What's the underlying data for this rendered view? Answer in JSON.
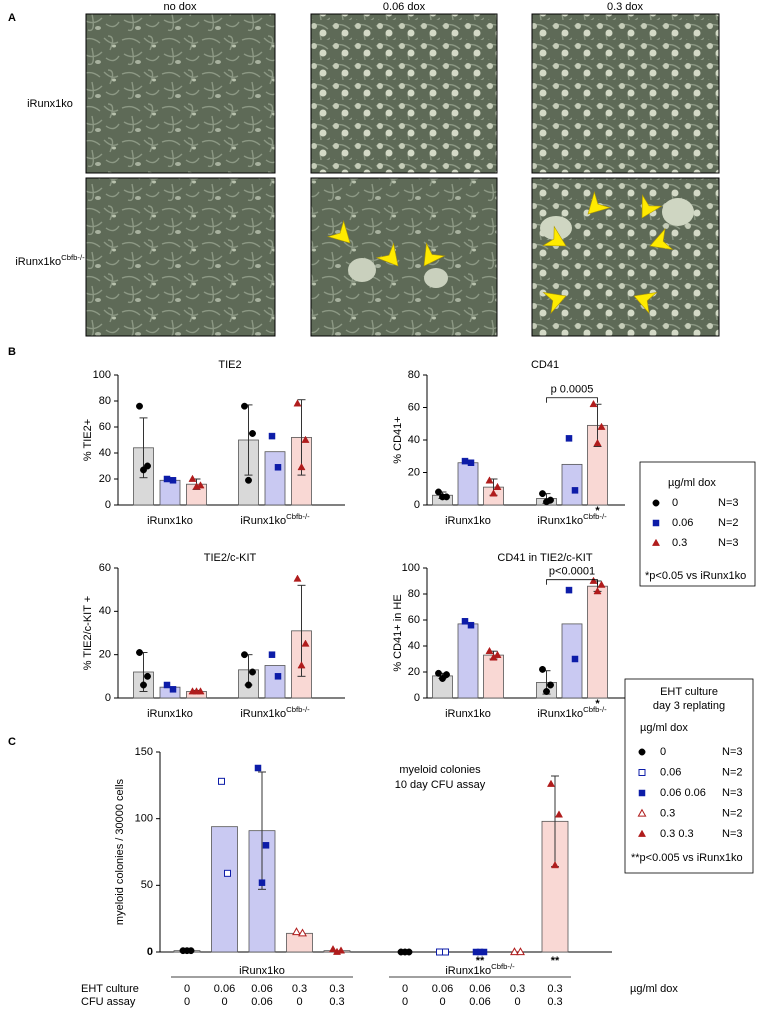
{
  "panel_labels": [
    "A",
    "B",
    "C"
  ],
  "panel_a": {
    "columns": [
      "no dox",
      "0.06 dox",
      "0.3 dox"
    ],
    "rows": [
      {
        "text": "iRunx1ko"
      },
      {
        "text": "iRunx1ko",
        "sup": "Cbfb-/-"
      }
    ]
  },
  "legend_b": {
    "unit": "µg/ml dox",
    "entries": [
      {
        "name": "0",
        "n": "N=3",
        "color": "#000000",
        "marker": "circle"
      },
      {
        "name": "0.06",
        "n": "N=2",
        "color": "#0d1ca8",
        "marker": "square"
      },
      {
        "name": "0.3",
        "n": "N=3",
        "color": "#b01c1c",
        "marker": "triangle"
      }
    ],
    "note": "*p<0.05 vs iRunx1ko"
  },
  "chart_data": [
    {
      "type": "bar",
      "title": "TIE2",
      "ylabel": "% TIE2+",
      "ylim": [
        0,
        100
      ],
      "yticks": [
        0,
        20,
        40,
        60,
        80,
        100
      ],
      "categories": [
        {
          "text": "iRunx1ko"
        },
        {
          "text": "iRunx1ko",
          "sup": "Cbfb-/-"
        }
      ],
      "series": [
        {
          "color": "#000000",
          "bar_color": "#d9d9d9",
          "marker": "circle",
          "values": [
            44,
            50
          ],
          "errors": [
            23,
            27
          ],
          "points": [
            [
              76,
              30,
              27
            ],
            [
              76,
              55,
              19
            ]
          ]
        },
        {
          "color": "#0d1ca8",
          "bar_color": "#c9c9f2",
          "marker": "square",
          "values": [
            19,
            41
          ],
          "errors": [
            null,
            null
          ],
          "points": [
            [
              20,
              19
            ],
            [
              53,
              29
            ]
          ]
        },
        {
          "color": "#b01c1c",
          "bar_color": "#f9d8d4",
          "marker": "triangle",
          "values": [
            16,
            52
          ],
          "errors": [
            4,
            29
          ],
          "points": [
            [
              20,
              15,
              14
            ],
            [
              78,
              50,
              29
            ]
          ]
        }
      ]
    },
    {
      "type": "bar",
      "title": "CD41",
      "ylabel": "% CD41+",
      "ylim": [
        0,
        80
      ],
      "yticks": [
        0,
        20,
        40,
        60,
        80
      ],
      "categories": [
        {
          "text": "iRunx1ko"
        },
        {
          "text": "iRunx1ko",
          "sup": "Cbfb-/-"
        }
      ],
      "series": [
        {
          "color": "#000000",
          "bar_color": "#d9d9d9",
          "marker": "circle",
          "values": [
            6,
            4
          ],
          "errors": [
            2,
            3
          ],
          "points": [
            [
              8,
              5,
              5
            ],
            [
              7,
              3,
              2
            ]
          ]
        },
        {
          "color": "#0d1ca8",
          "bar_color": "#c9c9f2",
          "marker": "square",
          "values": [
            26,
            25
          ],
          "errors": [
            null,
            null
          ],
          "points": [
            [
              27,
              26
            ],
            [
              41,
              9
            ]
          ]
        },
        {
          "color": "#b01c1c",
          "bar_color": "#f9d8d4",
          "marker": "triangle",
          "values": [
            11,
            49
          ],
          "errors": [
            5,
            13
          ],
          "points": [
            [
              15,
              11,
              7
            ],
            [
              62,
              48,
              38
            ]
          ],
          "significance": [
            null,
            "*"
          ]
        }
      ],
      "bracket": {
        "text": "p 0.0005",
        "value": 66
      }
    },
    {
      "type": "bar",
      "title": "TIE2/c-KIT",
      "ylabel": "% TIE2/c-KIT +",
      "ylim": [
        0,
        60
      ],
      "yticks": [
        0,
        20,
        40,
        60
      ],
      "categories": [
        {
          "text": "iRunx1ko"
        },
        {
          "text": "iRunx1ko",
          "sup": "Cbfb-/-"
        }
      ],
      "series": [
        {
          "color": "#000000",
          "bar_color": "#d9d9d9",
          "marker": "circle",
          "values": [
            12,
            13
          ],
          "errors": [
            9,
            7
          ],
          "points": [
            [
              21,
              10,
              6
            ],
            [
              20,
              12,
              6
            ]
          ]
        },
        {
          "color": "#0d1ca8",
          "bar_color": "#c9c9f2",
          "marker": "square",
          "values": [
            5,
            15
          ],
          "errors": [
            null,
            null
          ],
          "points": [
            [
              6,
              4
            ],
            [
              20,
              10
            ]
          ]
        },
        {
          "color": "#b01c1c",
          "bar_color": "#f9d8d4",
          "marker": "triangle",
          "values": [
            3,
            31
          ],
          "errors": [
            0.5,
            21
          ],
          "points": [
            [
              3,
              3,
              3
            ],
            [
              55,
              25,
              15
            ]
          ]
        }
      ]
    },
    {
      "type": "bar",
      "title": "CD41 in TIE2/c-KIT",
      "ylabel": "% CD41+ in HE",
      "ylim": [
        0,
        100
      ],
      "yticks": [
        0,
        20,
        40,
        60,
        80,
        100
      ],
      "categories": [
        {
          "text": "iRunx1ko"
        },
        {
          "text": "iRunx1ko",
          "sup": "Cbfb-/-"
        }
      ],
      "series": [
        {
          "color": "#000000",
          "bar_color": "#d9d9d9",
          "marker": "circle",
          "values": [
            17,
            12
          ],
          "errors": [
            2,
            9
          ],
          "points": [
            [
              19,
              18,
              15
            ],
            [
              22,
              10,
              5
            ]
          ]
        },
        {
          "color": "#0d1ca8",
          "bar_color": "#c9c9f2",
          "marker": "square",
          "values": [
            57,
            57
          ],
          "errors": [
            null,
            null
          ],
          "points": [
            [
              59,
              56
            ],
            [
              83,
              30
            ]
          ]
        },
        {
          "color": "#b01c1c",
          "bar_color": "#f9d8d4",
          "marker": "triangle",
          "values": [
            33,
            86
          ],
          "errors": [
            3,
            4
          ],
          "points": [
            [
              36,
              33,
              31
            ],
            [
              90,
              87,
              82
            ]
          ],
          "significance": [
            null,
            "*"
          ]
        }
      ],
      "bracket": {
        "text": "p<0.0001",
        "value": 91
      }
    },
    {
      "type": "bar",
      "ylabel": "myeloid colonies / 30000 cells",
      "ylim": [
        0,
        150
      ],
      "yticks": [
        0,
        50,
        100,
        150
      ],
      "annotation": [
        "myeloid colonies",
        "10 day CFU assay"
      ],
      "categories": [
        {
          "text": "iRunx1ko"
        },
        {
          "text": "iRunx1ko",
          "sup": "Cbfb-/-"
        }
      ],
      "series": [
        {
          "name": "0",
          "n": "N=3",
          "color": "#000000",
          "bar_color": "#d9d9d9",
          "marker": "circle",
          "values": [
            1,
            0
          ],
          "errors": [
            null,
            null
          ],
          "points": [
            [
              1,
              1,
              1
            ],
            [
              0,
              0,
              0
            ]
          ]
        },
        {
          "name": "0.06",
          "n": "N=2",
          "color": "#0d1ca8",
          "bar_color": "#c9c9f2",
          "marker": "square-open",
          "values": [
            94,
            0
          ],
          "errors": [
            null,
            null
          ],
          "points": [
            [
              128,
              59
            ],
            [
              0,
              0
            ]
          ]
        },
        {
          "name": "0.06 0.06",
          "n": "N=3",
          "color": "#0d1ca8",
          "bar_color": "#c9c9f2",
          "marker": "square",
          "values": [
            91,
            0
          ],
          "errors": [
            44,
            null
          ],
          "points": [
            [
              138,
              80,
              52
            ],
            [
              0,
              0,
              0
            ]
          ],
          "significance": [
            null,
            "**"
          ]
        },
        {
          "name": "0.3",
          "n": "N=2",
          "color": "#b01c1c",
          "bar_color": "#f9d8d4",
          "marker": "triangle-open",
          "values": [
            14,
            0
          ],
          "errors": [
            null,
            null
          ],
          "points": [
            [
              15,
              14
            ],
            [
              0,
              0
            ]
          ]
        },
        {
          "name": "0.3 0.3",
          "n": "N=3",
          "color": "#b01c1c",
          "bar_color": "#f9d8d4",
          "marker": "triangle",
          "values": [
            1,
            98
          ],
          "errors": [
            null,
            34
          ],
          "points": [
            [
              2,
              1,
              0
            ],
            [
              126,
              103,
              65
            ]
          ],
          "significance": [
            null,
            "**"
          ]
        }
      ],
      "legend": {
        "title": [
          "EHT culture",
          "day 3 replating"
        ],
        "unit": "µg/ml dox",
        "note": "**p<0.005 vs iRunx1ko"
      },
      "table": {
        "rows": [
          {
            "label": "EHT culture",
            "values": [
              0,
              0.06,
              0.06,
              0.3,
              0.3,
              0,
              0.06,
              0.06,
              0.3,
              0.3
            ]
          },
          {
            "label": "CFU assay",
            "values": [
              0,
              0,
              0.06,
              0,
              0.3,
              0,
              0,
              0.06,
              0,
              0.3
            ]
          }
        ],
        "unit": "µg/ml dox"
      }
    }
  ]
}
